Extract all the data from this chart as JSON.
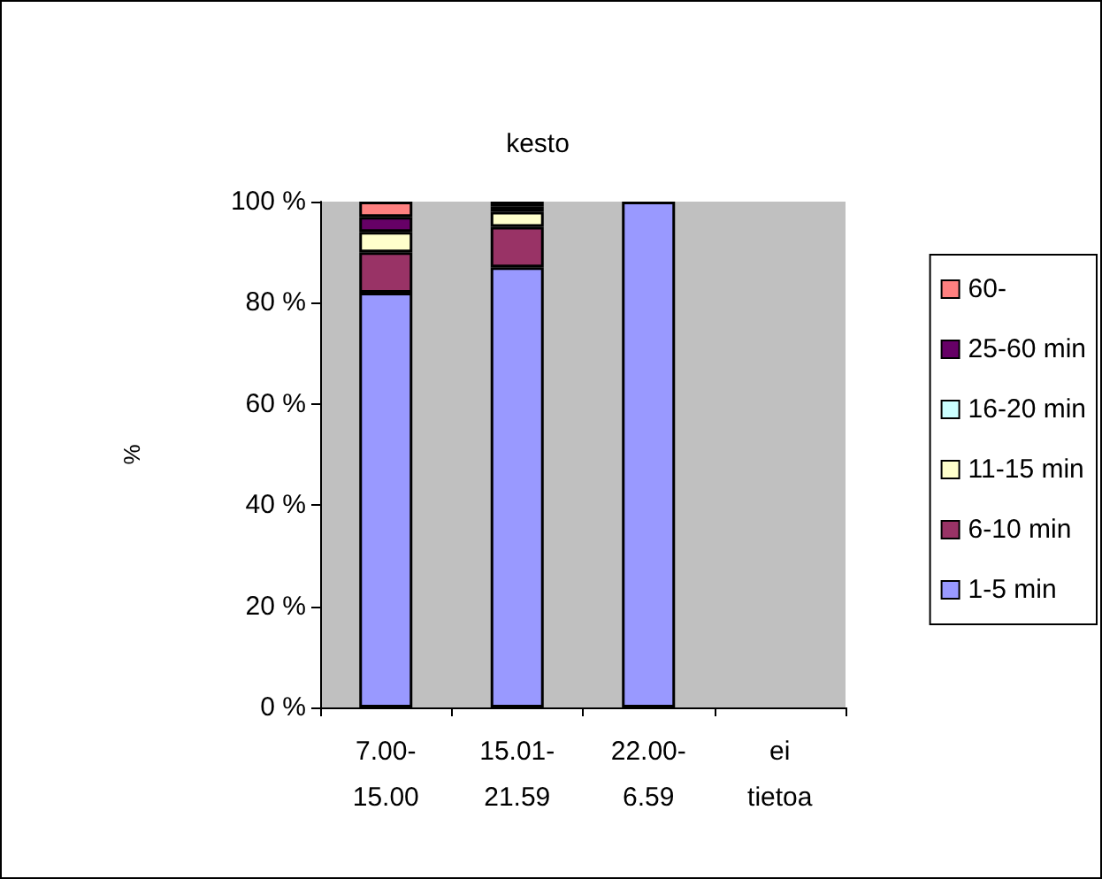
{
  "chart_data": {
    "type": "bar",
    "title": "kesto",
    "ylabel": "%",
    "stacked": true,
    "categories": [
      "7.00-\n15.00",
      "15.01-\n21.59",
      "22.00-\n6.59",
      "ei\ntietoa"
    ],
    "series": [
      {
        "name": "1-5 min",
        "color": "#9999ff",
        "values": [
          82,
          87,
          100,
          null
        ]
      },
      {
        "name": "6-10 min",
        "color": "#993366",
        "values": [
          8,
          8,
          null,
          null
        ]
      },
      {
        "name": "11-15 min",
        "color": "#ffffcc",
        "values": [
          4,
          3,
          null,
          null
        ]
      },
      {
        "name": "16-20 min",
        "color": "#ccffff",
        "values": [
          null,
          null,
          null,
          null
        ]
      },
      {
        "name": "25-60 min",
        "color": "#660066",
        "values": [
          3,
          1,
          null,
          null
        ]
      },
      {
        "name": "60-",
        "color": "#ff8080",
        "values": [
          3,
          1,
          null,
          null
        ]
      }
    ],
    "ylim": [
      0,
      100
    ],
    "yticks": [
      {
        "value": 0,
        "label": "0 %"
      },
      {
        "value": 20,
        "label": "20 %"
      },
      {
        "value": 40,
        "label": "40 %"
      },
      {
        "value": 60,
        "label": "60 %"
      },
      {
        "value": 80,
        "label": "80 %"
      },
      {
        "value": 100,
        "label": "100 %"
      }
    ],
    "grid": false,
    "legend": "right"
  }
}
